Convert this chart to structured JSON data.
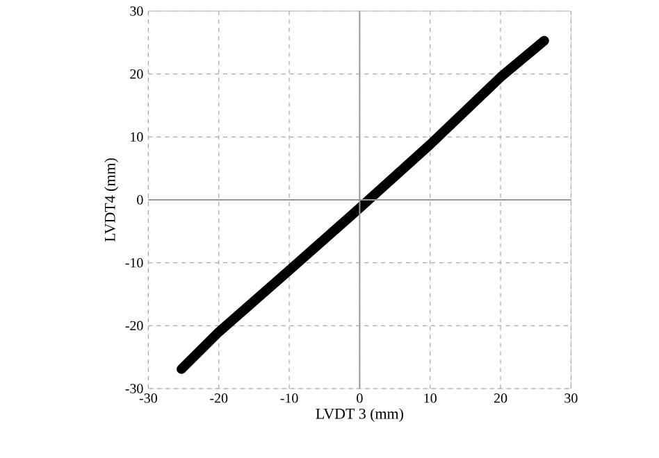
{
  "chart_data": {
    "type": "line",
    "xlabel": "LVDT 3 (mm)",
    "ylabel": "LVDT4 (mm)",
    "x": [
      -25.3,
      -20,
      -10,
      0,
      10,
      20,
      26.2
    ],
    "series": [
      {
        "color": "#000000",
        "values": [
          -26.9,
          -21,
          -11.2,
          -1.3,
          8.8,
          19.5,
          25.3
        ]
      }
    ],
    "xlim": [
      -30,
      30
    ],
    "ylim": [
      -30,
      30
    ],
    "xticks": [
      -30,
      -20,
      -10,
      0,
      10,
      20,
      30
    ],
    "yticks": [
      -30,
      -20,
      -10,
      0,
      10,
      20,
      30
    ],
    "grid": true,
    "marker": "none",
    "line_style": "solid"
  }
}
